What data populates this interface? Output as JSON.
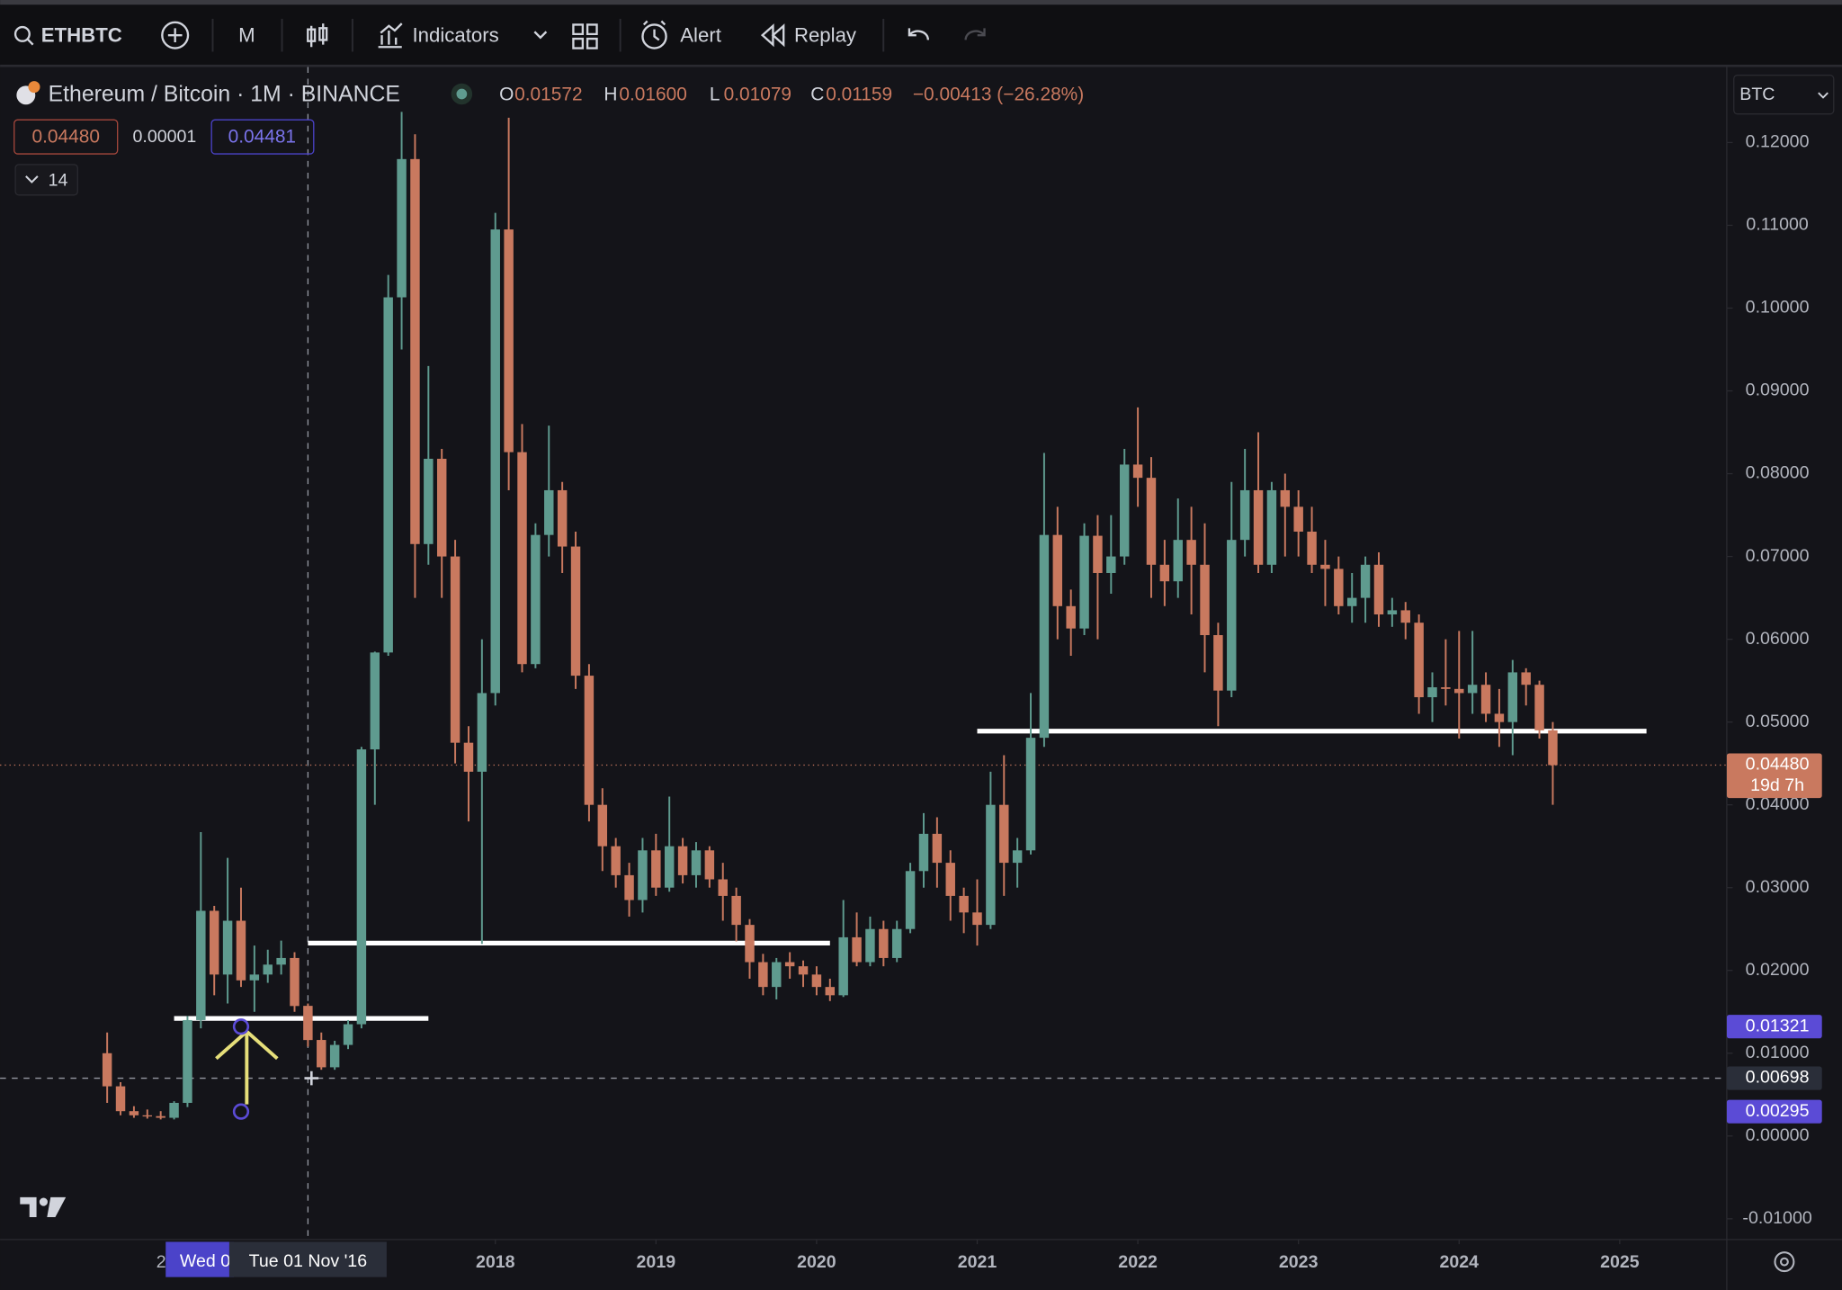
{
  "toolbar": {
    "symbol": "ETHBTC",
    "interval": "M",
    "indicators": "Indicators",
    "alert": "Alert",
    "replay": "Replay"
  },
  "legend": {
    "title": "Ethereum / Bitcoin · 1M · BINANCE",
    "ohlc": [
      {
        "key": "O",
        "value": "0.01572"
      },
      {
        "key": "H",
        "value": "0.01600"
      },
      {
        "key": "L",
        "value": "0.01079"
      },
      {
        "key": "C",
        "value": "0.01159"
      }
    ],
    "change": "−0.00413 (−26.28%)",
    "sell": "0.04480",
    "spread": "0.00001",
    "buy": "0.04481",
    "indicators_count": "14",
    "currency": "BTC"
  },
  "chart_data": {
    "type": "candlestick",
    "up_color": "#5f9b8f",
    "down_color": "#c9795f",
    "xlim": [
      "2014-12",
      "2025-09"
    ],
    "ylim": [
      -0.0125,
      0.1287
    ],
    "yticks": [
      {
        "value": 0.12,
        "label": "0.12000"
      },
      {
        "value": 0.11,
        "label": "0.11000"
      },
      {
        "value": 0.1,
        "label": "0.10000"
      },
      {
        "value": 0.09,
        "label": "0.09000"
      },
      {
        "value": 0.08,
        "label": "0.08000"
      },
      {
        "value": 0.07,
        "label": "0.07000"
      },
      {
        "value": 0.06,
        "label": "0.06000"
      },
      {
        "value": 0.05,
        "label": "0.05000"
      },
      {
        "value": 0.04,
        "label": "0.04000"
      },
      {
        "value": 0.03,
        "label": "0.03000"
      },
      {
        "value": 0.02,
        "label": "0.02000"
      },
      {
        "value": 0.01,
        "label": "0.01000"
      },
      {
        "value": 0,
        "label": "0.00000"
      },
      {
        "value": -0.01,
        "label": "-0.01000"
      }
    ],
    "xticks": [
      {
        "value": "2018-01",
        "label": "2018"
      },
      {
        "value": "2019-01",
        "label": "2019"
      },
      {
        "value": "2020-01",
        "label": "2020"
      },
      {
        "value": "2021-01",
        "label": "2021"
      },
      {
        "value": "2022-01",
        "label": "2022"
      },
      {
        "value": "2023-01",
        "label": "2023"
      },
      {
        "value": "2024-01",
        "label": "2024"
      },
      {
        "value": "2025-01",
        "label": "2025"
      }
    ],
    "grid": false,
    "candles": [
      {
        "x": "2015-08",
        "open": 0.01,
        "high": 0.0125,
        "low": 0.004,
        "close": 0.006
      },
      {
        "x": "2015-09",
        "open": 0.006,
        "high": 0.0065,
        "low": 0.0025,
        "close": 0.003
      },
      {
        "x": "2015-10",
        "open": 0.003,
        "high": 0.0036,
        "low": 0.0022,
        "close": 0.0025
      },
      {
        "x": "2015-11",
        "open": 0.0025,
        "high": 0.0032,
        "low": 0.0021,
        "close": 0.0024
      },
      {
        "x": "2015-12",
        "open": 0.0024,
        "high": 0.003,
        "low": 0.002,
        "close": 0.0022
      },
      {
        "x": "2016-01",
        "open": 0.0022,
        "high": 0.0042,
        "low": 0.002,
        "close": 0.004
      },
      {
        "x": "2016-02",
        "open": 0.004,
        "high": 0.0145,
        "low": 0.0035,
        "close": 0.014
      },
      {
        "x": "2016-03",
        "open": 0.014,
        "high": 0.0367,
        "low": 0.013,
        "close": 0.0272
      },
      {
        "x": "2016-04",
        "open": 0.0272,
        "high": 0.0278,
        "low": 0.017,
        "close": 0.0195
      },
      {
        "x": "2016-05",
        "open": 0.0195,
        "high": 0.0336,
        "low": 0.016,
        "close": 0.026
      },
      {
        "x": "2016-06",
        "open": 0.026,
        "high": 0.03,
        "low": 0.018,
        "close": 0.0188
      },
      {
        "x": "2016-07",
        "open": 0.0188,
        "high": 0.023,
        "low": 0.015,
        "close": 0.0195
      },
      {
        "x": "2016-08",
        "open": 0.0195,
        "high": 0.0225,
        "low": 0.0185,
        "close": 0.0207
      },
      {
        "x": "2016-09",
        "open": 0.0207,
        "high": 0.0236,
        "low": 0.0195,
        "close": 0.0215
      },
      {
        "x": "2016-10",
        "open": 0.0215,
        "high": 0.0222,
        "low": 0.015,
        "close": 0.0157
      },
      {
        "x": "2016-11",
        "open": 0.01572,
        "high": 0.016,
        "low": 0.01079,
        "close": 0.01159
      },
      {
        "x": "2016-12",
        "open": 0.0116,
        "high": 0.0125,
        "low": 0.008,
        "close": 0.0083
      },
      {
        "x": "2017-01",
        "open": 0.0083,
        "high": 0.0115,
        "low": 0.008,
        "close": 0.011
      },
      {
        "x": "2017-02",
        "open": 0.011,
        "high": 0.014,
        "low": 0.0105,
        "close": 0.0135
      },
      {
        "x": "2017-03",
        "open": 0.0135,
        "high": 0.047,
        "low": 0.013,
        "close": 0.0467
      },
      {
        "x": "2017-04",
        "open": 0.0467,
        "high": 0.0585,
        "low": 0.04,
        "close": 0.0584
      },
      {
        "x": "2017-05",
        "open": 0.0584,
        "high": 0.104,
        "low": 0.058,
        "close": 0.1013
      },
      {
        "x": "2017-06",
        "open": 0.1013,
        "high": 0.1237,
        "low": 0.095,
        "close": 0.118
      },
      {
        "x": "2017-07",
        "open": 0.118,
        "high": 0.121,
        "low": 0.065,
        "close": 0.0715
      },
      {
        "x": "2017-08",
        "open": 0.0715,
        "high": 0.093,
        "low": 0.069,
        "close": 0.0818
      },
      {
        "x": "2017-09",
        "open": 0.0818,
        "high": 0.083,
        "low": 0.065,
        "close": 0.07
      },
      {
        "x": "2017-10",
        "open": 0.07,
        "high": 0.072,
        "low": 0.045,
        "close": 0.0475
      },
      {
        "x": "2017-11",
        "open": 0.0475,
        "high": 0.0495,
        "low": 0.038,
        "close": 0.044
      },
      {
        "x": "2017-12",
        "open": 0.044,
        "high": 0.06,
        "low": 0.0232,
        "close": 0.0535
      },
      {
        "x": "2018-01",
        "open": 0.0535,
        "high": 0.1115,
        "low": 0.052,
        "close": 0.1095
      },
      {
        "x": "2018-02",
        "open": 0.1095,
        "high": 0.123,
        "low": 0.078,
        "close": 0.0826
      },
      {
        "x": "2018-03",
        "open": 0.0826,
        "high": 0.086,
        "low": 0.056,
        "close": 0.057
      },
      {
        "x": "2018-04",
        "open": 0.057,
        "high": 0.074,
        "low": 0.0565,
        "close": 0.0726
      },
      {
        "x": "2018-05",
        "open": 0.0726,
        "high": 0.0858,
        "low": 0.07,
        "close": 0.078
      },
      {
        "x": "2018-06",
        "open": 0.078,
        "high": 0.079,
        "low": 0.068,
        "close": 0.0712
      },
      {
        "x": "2018-07",
        "open": 0.0712,
        "high": 0.073,
        "low": 0.054,
        "close": 0.0556
      },
      {
        "x": "2018-08",
        "open": 0.0556,
        "high": 0.057,
        "low": 0.038,
        "close": 0.04
      },
      {
        "x": "2018-09",
        "open": 0.04,
        "high": 0.042,
        "low": 0.032,
        "close": 0.035
      },
      {
        "x": "2018-10",
        "open": 0.035,
        "high": 0.036,
        "low": 0.03,
        "close": 0.0315
      },
      {
        "x": "2018-11",
        "open": 0.0315,
        "high": 0.033,
        "low": 0.0265,
        "close": 0.0285
      },
      {
        "x": "2018-12",
        "open": 0.0285,
        "high": 0.036,
        "low": 0.027,
        "close": 0.0345
      },
      {
        "x": "2019-01",
        "open": 0.0345,
        "high": 0.0365,
        "low": 0.029,
        "close": 0.03
      },
      {
        "x": "2019-02",
        "open": 0.03,
        "high": 0.041,
        "low": 0.0295,
        "close": 0.035
      },
      {
        "x": "2019-03",
        "open": 0.035,
        "high": 0.036,
        "low": 0.0305,
        "close": 0.0315
      },
      {
        "x": "2019-04",
        "open": 0.0315,
        "high": 0.0355,
        "low": 0.03,
        "close": 0.0345
      },
      {
        "x": "2019-05",
        "open": 0.0345,
        "high": 0.035,
        "low": 0.03,
        "close": 0.031
      },
      {
        "x": "2019-06",
        "open": 0.031,
        "high": 0.033,
        "low": 0.026,
        "close": 0.029
      },
      {
        "x": "2019-07",
        "open": 0.029,
        "high": 0.03,
        "low": 0.0235,
        "close": 0.0255
      },
      {
        "x": "2019-08",
        "open": 0.0255,
        "high": 0.0262,
        "low": 0.019,
        "close": 0.021
      },
      {
        "x": "2019-09",
        "open": 0.021,
        "high": 0.022,
        "low": 0.017,
        "close": 0.018
      },
      {
        "x": "2019-10",
        "open": 0.018,
        "high": 0.0215,
        "low": 0.0165,
        "close": 0.021
      },
      {
        "x": "2019-11",
        "open": 0.021,
        "high": 0.0222,
        "low": 0.019,
        "close": 0.0205
      },
      {
        "x": "2019-12",
        "open": 0.0205,
        "high": 0.0212,
        "low": 0.018,
        "close": 0.0195
      },
      {
        "x": "2020-01",
        "open": 0.0195,
        "high": 0.0205,
        "low": 0.017,
        "close": 0.018
      },
      {
        "x": "2020-02",
        "open": 0.018,
        "high": 0.019,
        "low": 0.0163,
        "close": 0.017
      },
      {
        "x": "2020-03",
        "open": 0.017,
        "high": 0.0285,
        "low": 0.0168,
        "close": 0.024
      },
      {
        "x": "2020-04",
        "open": 0.024,
        "high": 0.027,
        "low": 0.0205,
        "close": 0.021
      },
      {
        "x": "2020-05",
        "open": 0.021,
        "high": 0.0265,
        "low": 0.0205,
        "close": 0.025
      },
      {
        "x": "2020-06",
        "open": 0.025,
        "high": 0.026,
        "low": 0.0205,
        "close": 0.0215
      },
      {
        "x": "2020-07",
        "open": 0.0215,
        "high": 0.026,
        "low": 0.021,
        "close": 0.025
      },
      {
        "x": "2020-08",
        "open": 0.025,
        "high": 0.033,
        "low": 0.0245,
        "close": 0.032
      },
      {
        "x": "2020-09",
        "open": 0.032,
        "high": 0.039,
        "low": 0.03,
        "close": 0.0365
      },
      {
        "x": "2020-10",
        "open": 0.0365,
        "high": 0.0385,
        "low": 0.03,
        "close": 0.033
      },
      {
        "x": "2020-11",
        "open": 0.033,
        "high": 0.0345,
        "low": 0.026,
        "close": 0.029
      },
      {
        "x": "2020-12",
        "open": 0.029,
        "high": 0.03,
        "low": 0.0245,
        "close": 0.027
      },
      {
        "x": "2021-01",
        "open": 0.027,
        "high": 0.031,
        "low": 0.023,
        "close": 0.0255
      },
      {
        "x": "2021-02",
        "open": 0.0255,
        "high": 0.044,
        "low": 0.025,
        "close": 0.04
      },
      {
        "x": "2021-03",
        "open": 0.04,
        "high": 0.046,
        "low": 0.029,
        "close": 0.033
      },
      {
        "x": "2021-04",
        "open": 0.033,
        "high": 0.036,
        "low": 0.03,
        "close": 0.0345
      },
      {
        "x": "2021-05",
        "open": 0.0345,
        "high": 0.0535,
        "low": 0.034,
        "close": 0.0481
      },
      {
        "x": "2021-06",
        "open": 0.0481,
        "high": 0.0825,
        "low": 0.047,
        "close": 0.0726
      },
      {
        "x": "2021-07",
        "open": 0.0726,
        "high": 0.076,
        "low": 0.06,
        "close": 0.064
      },
      {
        "x": "2021-08",
        "open": 0.064,
        "high": 0.066,
        "low": 0.058,
        "close": 0.0613
      },
      {
        "x": "2021-09",
        "open": 0.0613,
        "high": 0.074,
        "low": 0.0605,
        "close": 0.0725
      },
      {
        "x": "2021-10",
        "open": 0.0725,
        "high": 0.075,
        "low": 0.06,
        "close": 0.068
      },
      {
        "x": "2021-11",
        "open": 0.068,
        "high": 0.075,
        "low": 0.0655,
        "close": 0.07
      },
      {
        "x": "2021-12",
        "open": 0.07,
        "high": 0.083,
        "low": 0.069,
        "close": 0.0811
      },
      {
        "x": "2022-01",
        "open": 0.0811,
        "high": 0.088,
        "low": 0.076,
        "close": 0.0795
      },
      {
        "x": "2022-02",
        "open": 0.0795,
        "high": 0.082,
        "low": 0.065,
        "close": 0.069
      },
      {
        "x": "2022-03",
        "open": 0.069,
        "high": 0.072,
        "low": 0.064,
        "close": 0.067
      },
      {
        "x": "2022-04",
        "open": 0.067,
        "high": 0.077,
        "low": 0.065,
        "close": 0.072
      },
      {
        "x": "2022-05",
        "open": 0.072,
        "high": 0.076,
        "low": 0.063,
        "close": 0.069
      },
      {
        "x": "2022-06",
        "open": 0.069,
        "high": 0.074,
        "low": 0.056,
        "close": 0.0605
      },
      {
        "x": "2022-07",
        "open": 0.0605,
        "high": 0.062,
        "low": 0.0495,
        "close": 0.0538
      },
      {
        "x": "2022-08",
        "open": 0.0538,
        "high": 0.079,
        "low": 0.053,
        "close": 0.072
      },
      {
        "x": "2022-09",
        "open": 0.072,
        "high": 0.083,
        "low": 0.07,
        "close": 0.078
      },
      {
        "x": "2022-10",
        "open": 0.078,
        "high": 0.085,
        "low": 0.068,
        "close": 0.069
      },
      {
        "x": "2022-11",
        "open": 0.069,
        "high": 0.079,
        "low": 0.068,
        "close": 0.078
      },
      {
        "x": "2022-12",
        "open": 0.078,
        "high": 0.08,
        "low": 0.07,
        "close": 0.076
      },
      {
        "x": "2023-01",
        "open": 0.076,
        "high": 0.078,
        "low": 0.07,
        "close": 0.073
      },
      {
        "x": "2023-02",
        "open": 0.073,
        "high": 0.076,
        "low": 0.068,
        "close": 0.069
      },
      {
        "x": "2023-03",
        "open": 0.069,
        "high": 0.072,
        "low": 0.064,
        "close": 0.0685
      },
      {
        "x": "2023-04",
        "open": 0.0685,
        "high": 0.07,
        "low": 0.063,
        "close": 0.064
      },
      {
        "x": "2023-05",
        "open": 0.064,
        "high": 0.068,
        "low": 0.062,
        "close": 0.065
      },
      {
        "x": "2023-06",
        "open": 0.065,
        "high": 0.07,
        "low": 0.062,
        "close": 0.069
      },
      {
        "x": "2023-07",
        "open": 0.069,
        "high": 0.0705,
        "low": 0.0615,
        "close": 0.063
      },
      {
        "x": "2023-08",
        "open": 0.063,
        "high": 0.065,
        "low": 0.0615,
        "close": 0.0635
      },
      {
        "x": "2023-09",
        "open": 0.0635,
        "high": 0.0645,
        "low": 0.06,
        "close": 0.062
      },
      {
        "x": "2023-10",
        "open": 0.062,
        "high": 0.063,
        "low": 0.051,
        "close": 0.053
      },
      {
        "x": "2023-11",
        "open": 0.053,
        "high": 0.056,
        "low": 0.05,
        "close": 0.0542
      },
      {
        "x": "2023-12",
        "open": 0.0542,
        "high": 0.06,
        "low": 0.052,
        "close": 0.054
      },
      {
        "x": "2024-01",
        "open": 0.054,
        "high": 0.061,
        "low": 0.048,
        "close": 0.0535
      },
      {
        "x": "2024-02",
        "open": 0.0535,
        "high": 0.061,
        "low": 0.051,
        "close": 0.0545
      },
      {
        "x": "2024-03",
        "open": 0.0545,
        "high": 0.056,
        "low": 0.05,
        "close": 0.051
      },
      {
        "x": "2024-04",
        "open": 0.051,
        "high": 0.054,
        "low": 0.047,
        "close": 0.05
      },
      {
        "x": "2024-05",
        "open": 0.05,
        "high": 0.0575,
        "low": 0.046,
        "close": 0.056
      },
      {
        "x": "2024-06",
        "open": 0.056,
        "high": 0.0565,
        "low": 0.052,
        "close": 0.0545
      },
      {
        "x": "2024-07",
        "open": 0.0545,
        "high": 0.055,
        "low": 0.048,
        "close": 0.049
      },
      {
        "x": "2024-08",
        "open": 0.049,
        "high": 0.05,
        "low": 0.04,
        "close": 0.0448
      }
    ],
    "drawings": [
      {
        "value": 0.0142,
        "start": "2016-01",
        "end": "2017-08"
      },
      {
        "value": 0.0233,
        "start": "2016-11",
        "end": "2020-02"
      },
      {
        "value": 0.0489,
        "start": "2021-01",
        "end": "2025-03"
      }
    ],
    "price_tags": [
      {
        "value": 0.0448,
        "label": "0.04480",
        "sub": "19d 7h",
        "color": "#c9795f"
      },
      {
        "value": 0.01321,
        "label": "0.01321",
        "color": "#5b4bd6"
      },
      {
        "value": 0.00698,
        "label": "0.00698",
        "color": "#2a2e39"
      },
      {
        "value": 0.00295,
        "label": "0.00295",
        "color": "#5b4bd6"
      }
    ],
    "measure_x": "2016-06",
    "crosshair": {
      "x": "2016-11",
      "x_label": "Tue 01 Nov '16"
    },
    "measure_date_label": "Wed 0",
    "clipped_date_label": "2"
  }
}
